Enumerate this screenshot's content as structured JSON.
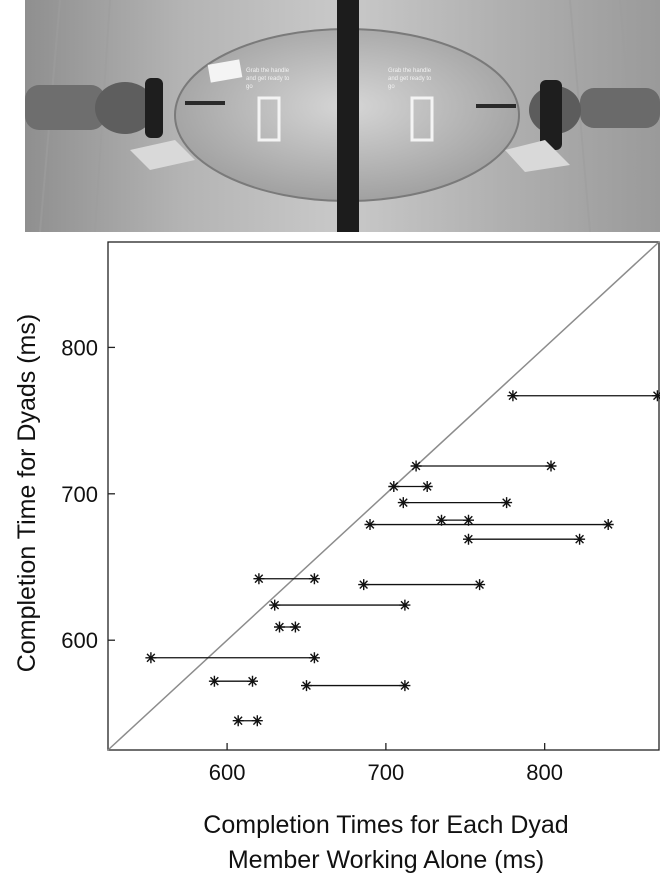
{
  "photo": {
    "left_screen_text": [
      "Grab the handle",
      "and get ready to",
      "go"
    ],
    "right_screen_text": [
      "Grab the handle",
      "and get ready to",
      "go"
    ]
  },
  "chart_data": {
    "type": "scatter",
    "title": "",
    "xlabel": [
      "Completion Times for Each Dyad",
      "Member Working Alone (ms)"
    ],
    "ylabel": "Completion Time for Dyads (ms)",
    "xlim": [
      525,
      872
    ],
    "ylim": [
      525,
      872
    ],
    "xticks": [
      600,
      700,
      800
    ],
    "yticks": [
      600,
      700,
      800
    ],
    "grid": false,
    "legend": "none",
    "reference_line": "y = x",
    "marker": "asterisk",
    "dyads": [
      {
        "y": 767,
        "x": [
          780,
          871
        ]
      },
      {
        "y": 719,
        "x": [
          719,
          804
        ]
      },
      {
        "y": 705,
        "x": [
          705,
          726
        ]
      },
      {
        "y": 694,
        "x": [
          711,
          776
        ]
      },
      {
        "y": 682,
        "x": [
          735,
          752
        ]
      },
      {
        "y": 679,
        "x": [
          690,
          840
        ]
      },
      {
        "y": 669,
        "x": [
          752,
          822
        ]
      },
      {
        "y": 642,
        "x": [
          620,
          655
        ]
      },
      {
        "y": 638,
        "x": [
          686,
          759
        ]
      },
      {
        "y": 624,
        "x": [
          630,
          712
        ]
      },
      {
        "y": 609,
        "x": [
          633,
          643
        ]
      },
      {
        "y": 588,
        "x": [
          552,
          655
        ]
      },
      {
        "y": 572,
        "x": [
          592,
          616
        ]
      },
      {
        "y": 569,
        "x": [
          650,
          712
        ]
      },
      {
        "y": 545,
        "x": [
          607,
          619
        ]
      }
    ]
  }
}
